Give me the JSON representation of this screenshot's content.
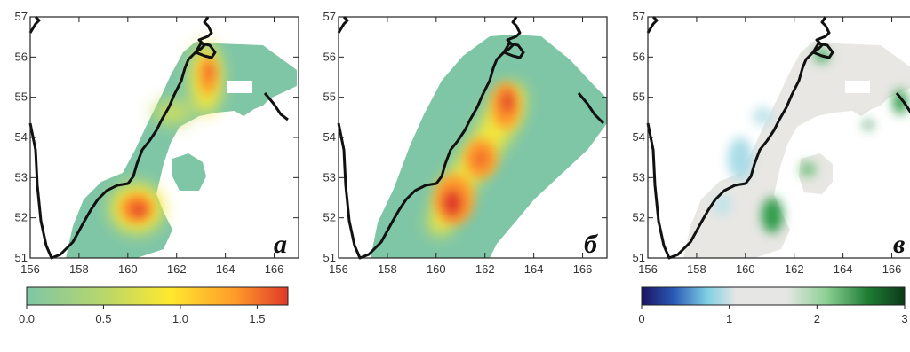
{
  "panels": [
    {
      "id": "a",
      "letter": "а",
      "x_ticks": [
        "156",
        "158",
        "160",
        "162",
        "164",
        "166"
      ],
      "y_ticks": [
        "51",
        "52",
        "53",
        "54",
        "55",
        "56",
        "57"
      ],
      "colorbar": {
        "ticks": [
          "0.0",
          "0.5",
          "1.0",
          "1.5"
        ],
        "colors": [
          "#7fc6a7",
          "#b9d76a",
          "#ffe82e",
          "#ff9a2a",
          "#e0392a"
        ]
      }
    },
    {
      "id": "b",
      "letter": "б",
      "x_ticks": [
        "156",
        "158",
        "160",
        "162",
        "164",
        "166"
      ],
      "y_ticks": [
        "51",
        "52",
        "53",
        "54",
        "55",
        "56",
        "57"
      ]
    },
    {
      "id": "c",
      "letter": "в",
      "x_ticks": [
        "156",
        "158",
        "160",
        "162",
        "164",
        "166"
      ],
      "y_ticks": [
        "51",
        "52",
        "53",
        "54",
        "55",
        "56",
        "57"
      ],
      "colorbar": {
        "ticks": [
          "0",
          "1",
          "2",
          "3"
        ],
        "colors": [
          "#1a1460",
          "#2a58b5",
          "#7fd0e4",
          "#e6e6e4",
          "#e6e6e4",
          "#8fd196",
          "#1e7d35",
          "#0b3a18"
        ]
      }
    }
  ],
  "colors": {
    "base_green": "#7fc6a7",
    "yellow": "#f5e93a",
    "orange": "#ff9a2a",
    "red": "#e0392a",
    "ratio_gray": "#e8e7e3",
    "ratio_blue": "#a9dbe6",
    "ratio_green": "#2d9b4a"
  }
}
